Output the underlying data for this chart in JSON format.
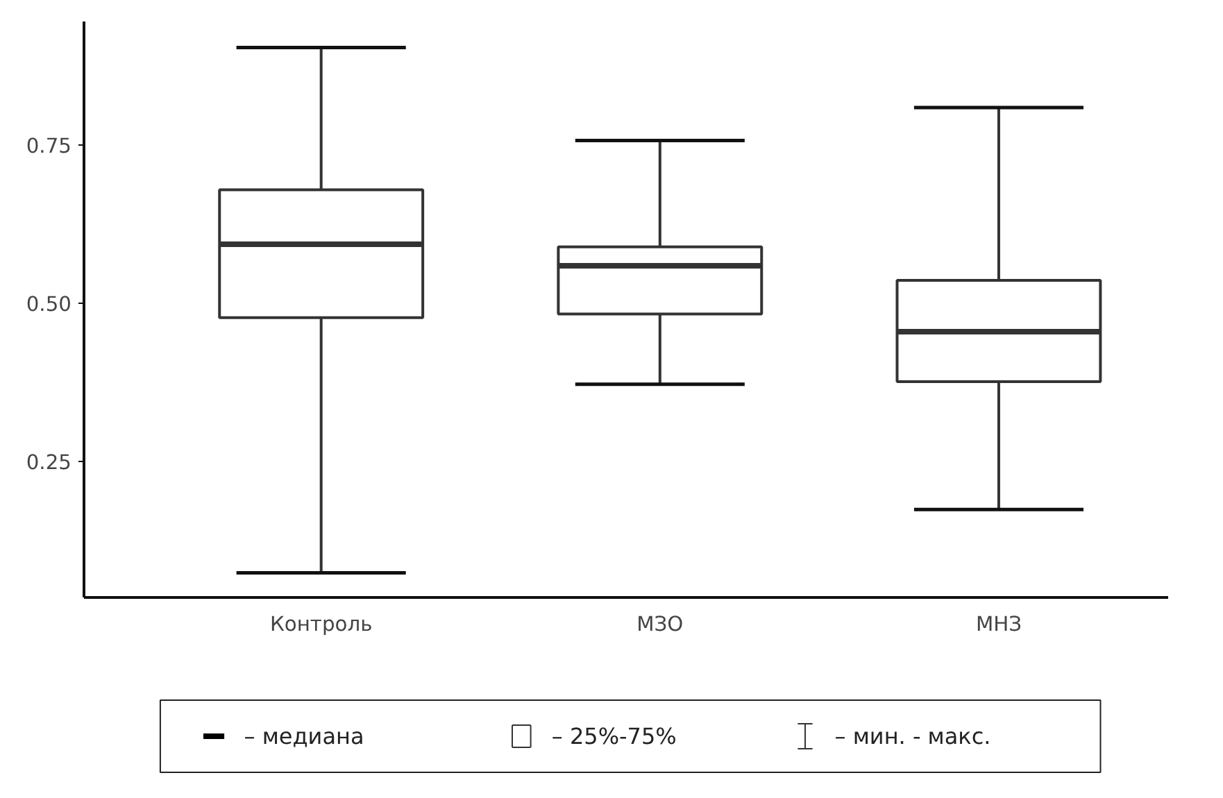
{
  "chart_data": {
    "type": "box",
    "categories": [
      "Контроль",
      "МЗО",
      "МНЗ"
    ],
    "boxes": [
      {
        "low": 0.074,
        "q1": 0.477,
        "median": 0.593,
        "q3": 0.679,
        "high": 0.904
      },
      {
        "low": 0.372,
        "q1": 0.483,
        "median": 0.559,
        "q3": 0.589,
        "high": 0.757
      },
      {
        "low": 0.174,
        "q1": 0.376,
        "median": 0.455,
        "q3": 0.536,
        "high": 0.809
      }
    ],
    "color": "#333333",
    "ylim": [
      0.035,
      0.945
    ],
    "yticks": [
      {
        "value": 0.25,
        "label": "0.25"
      },
      {
        "value": 0.5,
        "label": "0.50"
      },
      {
        "value": 0.75,
        "label": "0.75"
      }
    ],
    "grid": false,
    "annotations": [
      "–  медиана",
      "–  25%-75%",
      "–  мин. - макс."
    ]
  }
}
